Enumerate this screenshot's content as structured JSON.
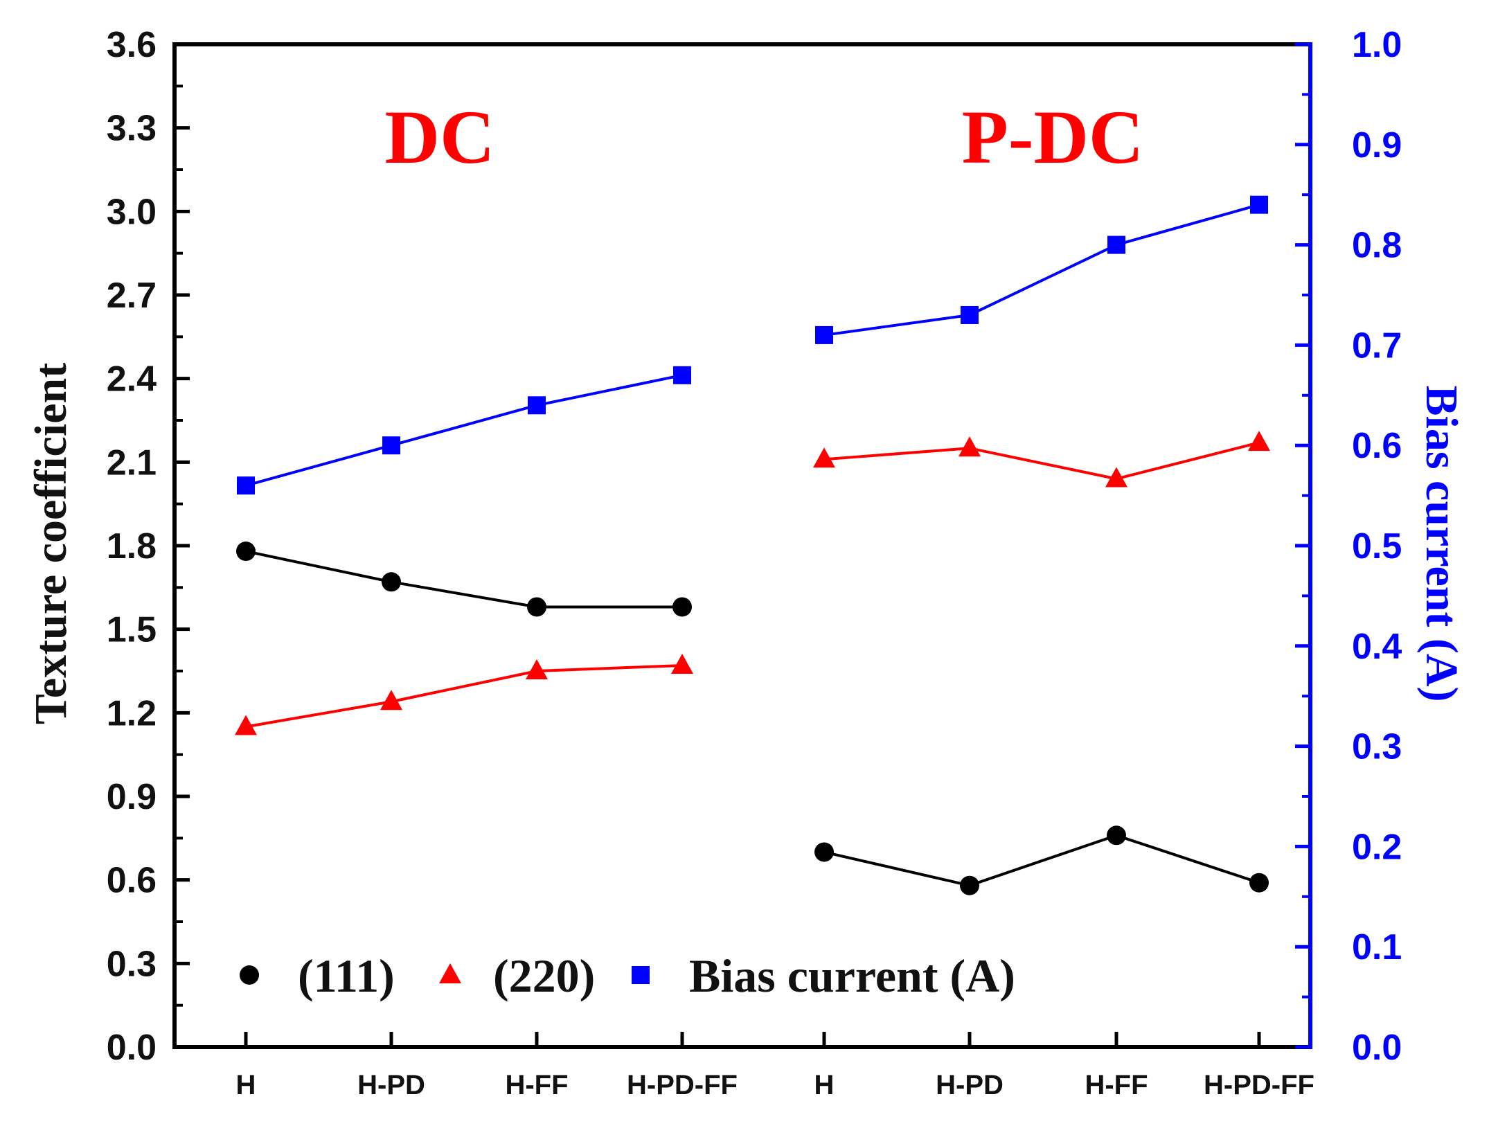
{
  "chart_data": {
    "type": "line",
    "groups": [
      {
        "label": "DC",
        "categories": [
          "H",
          "H-PD",
          "H-FF",
          "H-PD-FF"
        ],
        "series": [
          {
            "name": "(111)",
            "axis": "left",
            "marker": "circle",
            "color": "#000000",
            "values": [
              1.78,
              1.67,
              1.58,
              1.58
            ]
          },
          {
            "name": "(220)",
            "axis": "left",
            "marker": "triangle",
            "color": "#ff0000",
            "values": [
              1.15,
              1.24,
              1.35,
              1.37
            ]
          },
          {
            "name": "Bias current (A)",
            "axis": "right",
            "marker": "square",
            "color": "#0000ff",
            "values": [
              0.56,
              0.6,
              0.64,
              0.67
            ]
          }
        ]
      },
      {
        "label": "P-DC",
        "categories": [
          "H",
          "H-PD",
          "H-FF",
          "H-PD-FF"
        ],
        "series": [
          {
            "name": "(111)",
            "axis": "left",
            "marker": "circle",
            "color": "#000000",
            "values": [
              0.7,
              0.58,
              0.76,
              0.59
            ]
          },
          {
            "name": "(220)",
            "axis": "left",
            "marker": "triangle",
            "color": "#ff0000",
            "values": [
              2.11,
              2.15,
              2.04,
              2.17
            ]
          },
          {
            "name": "Bias current (A)",
            "axis": "right",
            "marker": "square",
            "color": "#0000ff",
            "values": [
              0.71,
              0.73,
              0.8,
              0.84
            ]
          }
        ]
      }
    ],
    "y_left": {
      "label": "Texture coefficient",
      "range": [
        0.0,
        3.6
      ],
      "ticks": [
        "0.0",
        "0.3",
        "0.6",
        "0.9",
        "1.2",
        "1.5",
        "1.8",
        "2.1",
        "2.4",
        "2.7",
        "3.0",
        "3.3",
        "3.6"
      ],
      "color": "#000000"
    },
    "y_right": {
      "label": "Bias current (A)",
      "range": [
        0.0,
        1.0
      ],
      "ticks": [
        "0.0",
        "0.1",
        "0.2",
        "0.3",
        "0.4",
        "0.5",
        "0.6",
        "0.7",
        "0.8",
        "0.9",
        "1.0"
      ],
      "color": "#0000ff"
    },
    "legend": {
      "placement": "bottom-left",
      "entries": [
        {
          "label": "(111)",
          "marker": "circle",
          "color": "#000000"
        },
        {
          "label": "(220)",
          "marker": "triangle",
          "color": "#ff0000"
        },
        {
          "label": "Bias current (A)",
          "marker": "square",
          "color": "#0000ff"
        }
      ]
    },
    "group_label_color": "#ff0000",
    "grid": false
  }
}
